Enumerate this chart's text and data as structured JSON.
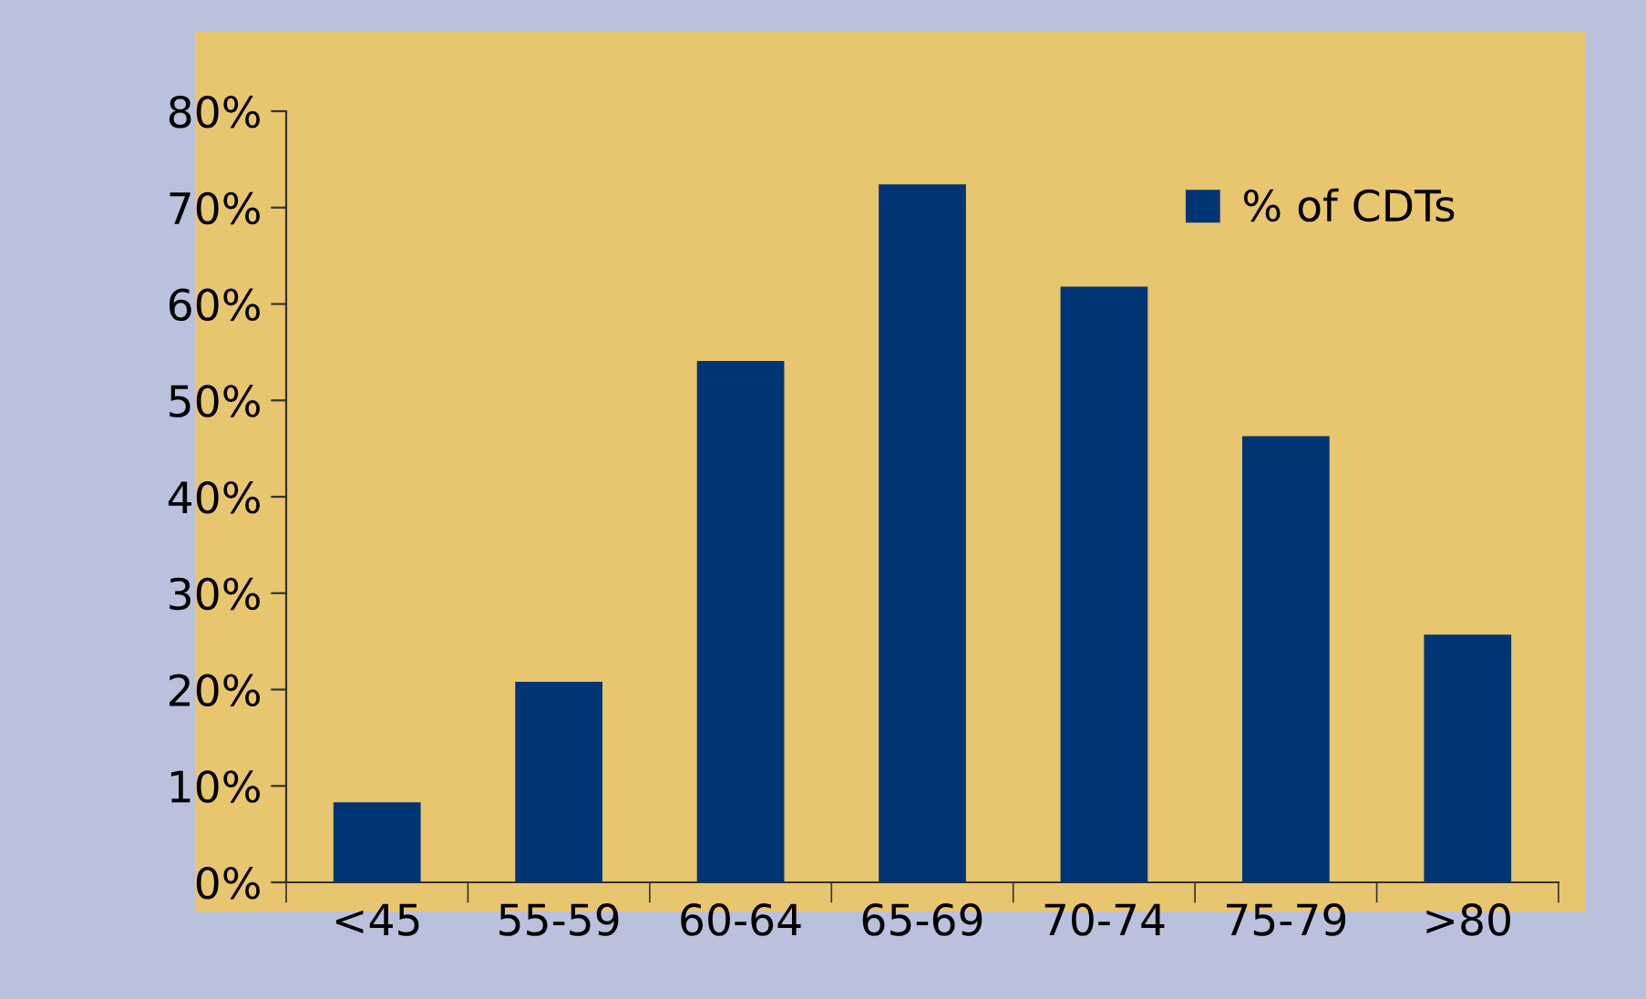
{
  "chart_data": {
    "type": "bar",
    "categories": [
      "<45",
      "55-59",
      "60-64",
      "65-69",
      "70-74",
      "75-79",
      ">80"
    ],
    "series": [
      {
        "name": "% of CDTs",
        "color": "#003574",
        "values": [
          8.3,
          20.8,
          54.1,
          72.4,
          61.8,
          46.3,
          25.7
        ]
      }
    ],
    "ylim": [
      0,
      80
    ],
    "yticks": [
      {
        "value": 0,
        "label": "0%"
      },
      {
        "value": 10,
        "label": "10%"
      },
      {
        "value": 20,
        "label": "20%"
      },
      {
        "value": 30,
        "label": "30%"
      },
      {
        "value": 40,
        "label": "40%"
      },
      {
        "value": 50,
        "label": "50%"
      },
      {
        "value": 60,
        "label": "60%"
      },
      {
        "value": 70,
        "label": "70%"
      },
      {
        "value": 80,
        "label": "80%"
      }
    ],
    "legend": "top right",
    "grid": false
  }
}
